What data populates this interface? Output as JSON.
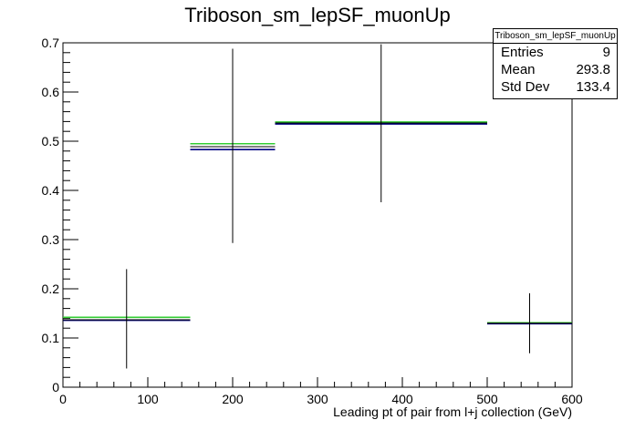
{
  "chart_data": {
    "type": "histogram",
    "title": "Triboson_sm_lepSF_muonUp",
    "xlabel": "Leading pt of pair from l+j collection (GeV)",
    "ylabel": "",
    "xlim": [
      0,
      600
    ],
    "ylim": [
      0,
      0.7
    ],
    "x_ticks": [
      0,
      100,
      200,
      300,
      400,
      500,
      600
    ],
    "y_ticks": [
      0,
      0.1,
      0.2,
      0.3,
      0.4,
      0.5,
      0.6,
      0.7
    ],
    "bins": [
      {
        "low": 0,
        "high": 150,
        "center": 75,
        "value": 0.137,
        "green": 0.141,
        "blue": 0.137,
        "err_low": 0.038,
        "err_high": 0.24
      },
      {
        "low": 150,
        "high": 250,
        "center": 200,
        "value": 0.489,
        "green": 0.494,
        "blue": 0.484,
        "err_low": 0.293,
        "err_high": 0.688
      },
      {
        "low": 250,
        "high": 500,
        "center": 375,
        "value": 0.537,
        "green": 0.538,
        "blue": 0.536,
        "err_low": 0.376,
        "err_high": 0.697
      },
      {
        "low": 500,
        "high": 600,
        "center": 550,
        "value": 0.13,
        "green": 0.13,
        "blue": 0.13,
        "err_low": 0.069,
        "err_high": 0.191
      }
    ],
    "colors": {
      "green": "#33cc33",
      "blue": "#000080",
      "black": "#000000"
    },
    "grid": false,
    "stats": {
      "title": "Triboson_sm_lepSF_muonUp",
      "rows": [
        {
          "label": "Entries",
          "value": "9"
        },
        {
          "label": "Mean",
          "value": "293.8"
        },
        {
          "label": "Std Dev",
          "value": "133.4"
        }
      ]
    }
  }
}
